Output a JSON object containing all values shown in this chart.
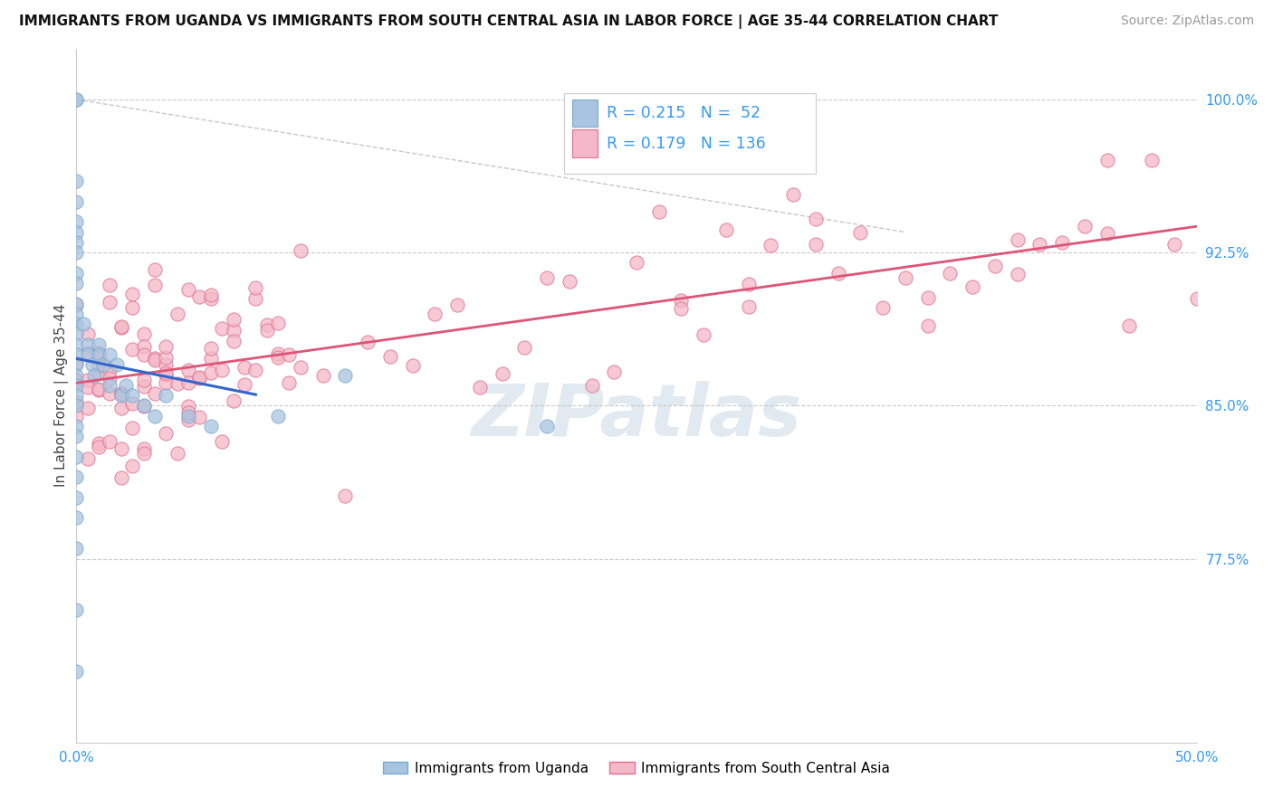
{
  "title": "IMMIGRANTS FROM UGANDA VS IMMIGRANTS FROM SOUTH CENTRAL ASIA IN LABOR FORCE | AGE 35-44 CORRELATION CHART",
  "source": "Source: ZipAtlas.com",
  "ylabel": "In Labor Force | Age 35-44",
  "xlim": [
    0.0,
    0.5
  ],
  "ylim": [
    0.685,
    1.025
  ],
  "xticks": [
    0.0,
    0.05,
    0.1,
    0.15,
    0.2,
    0.25,
    0.3,
    0.35,
    0.4,
    0.45,
    0.5
  ],
  "yticks": [
    0.775,
    0.85,
    0.925,
    1.0
  ],
  "uganda_color": "#a8c4e0",
  "uganda_edge": "#7aaad0",
  "sca_color": "#f4b8c8",
  "sca_edge": "#e07090",
  "uganda_R": 0.215,
  "uganda_N": 52,
  "sca_R": 0.179,
  "sca_N": 136,
  "legend_color": "#3399ff",
  "watermark": "ZIPatlas",
  "background_color": "#ffffff",
  "grid_color": "#bbbbbb",
  "trend_blue": "#3366cc",
  "trend_pink": "#dd5577",
  "ref_line_color": "#aaaaaa",
  "title_fontsize": 11,
  "source_fontsize": 10,
  "tick_fontsize": 11,
  "ylabel_fontsize": 11
}
